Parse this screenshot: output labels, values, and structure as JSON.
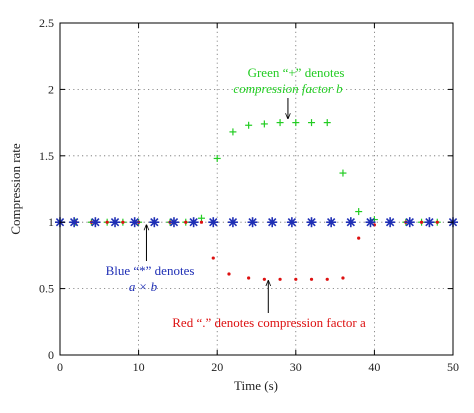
{
  "chart_data": {
    "type": "scatter",
    "xlabel": "Time (s)",
    "ylabel": "Compression rate",
    "xlim": [
      0,
      50
    ],
    "ylim": [
      0,
      2.5
    ],
    "xticks": [
      "0",
      "10",
      "20",
      "30",
      "40",
      "50"
    ],
    "yticks": [
      "0",
      "0.5",
      "1",
      "1.5",
      "2",
      "2.5"
    ],
    "grid": true,
    "series": [
      {
        "color": "#22cc22",
        "marker": "plus",
        "points": [
          [
            0,
            1
          ],
          [
            2,
            1
          ],
          [
            4,
            1
          ],
          [
            6,
            1
          ],
          [
            8,
            1
          ],
          [
            10,
            1
          ],
          [
            12,
            1
          ],
          [
            14,
            1
          ],
          [
            16,
            1
          ],
          [
            18,
            1.03
          ],
          [
            20,
            1.48
          ],
          [
            22,
            1.68
          ],
          [
            24,
            1.73
          ],
          [
            26,
            1.74
          ],
          [
            28,
            1.75
          ],
          [
            30,
            1.75
          ],
          [
            32,
            1.75
          ],
          [
            34,
            1.75
          ],
          [
            36,
            1.37
          ],
          [
            38,
            1.08
          ],
          [
            40,
            1.02
          ],
          [
            42,
            1
          ],
          [
            44,
            1
          ],
          [
            46,
            1
          ],
          [
            48,
            1
          ],
          [
            50,
            1
          ]
        ]
      },
      {
        "color": "#dd1111",
        "marker": "dot",
        "points": [
          [
            0,
            1
          ],
          [
            2,
            1
          ],
          [
            4,
            1
          ],
          [
            6,
            1
          ],
          [
            8,
            1
          ],
          [
            10,
            1
          ],
          [
            12,
            1
          ],
          [
            14,
            1
          ],
          [
            16,
            1
          ],
          [
            18,
            1
          ],
          [
            19.5,
            0.73
          ],
          [
            21.5,
            0.61
          ],
          [
            24,
            0.58
          ],
          [
            26,
            0.57
          ],
          [
            28,
            0.57
          ],
          [
            30,
            0.57
          ],
          [
            32,
            0.57
          ],
          [
            34,
            0.57
          ],
          [
            36,
            0.58
          ],
          [
            38,
            0.88
          ],
          [
            40,
            0.98
          ],
          [
            42,
            1
          ],
          [
            44,
            1
          ],
          [
            46,
            1
          ],
          [
            48,
            1
          ],
          [
            50,
            1
          ]
        ]
      },
      {
        "color": "#1f2fb5",
        "marker": "star",
        "points": [
          [
            0,
            1
          ],
          [
            1.8,
            1
          ],
          [
            4.5,
            1
          ],
          [
            7,
            1
          ],
          [
            9.5,
            1
          ],
          [
            12,
            1
          ],
          [
            14.5,
            1
          ],
          [
            17,
            1
          ],
          [
            19.5,
            1
          ],
          [
            22,
            1
          ],
          [
            24.5,
            1
          ],
          [
            27,
            1
          ],
          [
            29.5,
            1
          ],
          [
            32,
            1
          ],
          [
            34.5,
            1
          ],
          [
            37,
            1
          ],
          [
            39.5,
            1
          ],
          [
            42,
            1
          ],
          [
            44.5,
            1
          ],
          [
            47,
            1
          ],
          [
            50,
            1
          ]
        ]
      }
    ],
    "annotations": [
      {
        "line1": "Green “+” denotes",
        "line2": "compression factor b",
        "color": "#22cc22",
        "arrow_to": [
          29,
          1.76
        ]
      },
      {
        "line1": "Blue “*” denotes",
        "line2": "a × b",
        "color": "#1f2fb5",
        "arrow_to": [
          11,
          0.98
        ]
      },
      {
        "line1": "Red “.” denotes compression factor a",
        "color": "#dd1111",
        "arrow_to": [
          26.5,
          0.57
        ]
      }
    ]
  }
}
